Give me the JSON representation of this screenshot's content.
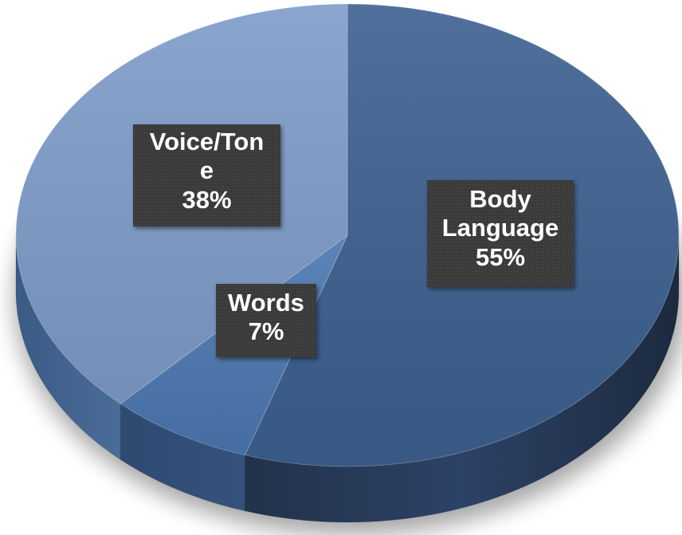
{
  "chart_data": {
    "type": "pie",
    "style": "3d",
    "slices": [
      {
        "label": "Body Language",
        "value": 55,
        "color": "#3d6090"
      },
      {
        "label": "Words",
        "value": 7,
        "color": "#4b77b0"
      },
      {
        "label": "Voice/Tone",
        "value": 38,
        "color": "#7d9cc9"
      }
    ]
  },
  "labels": {
    "body": {
      "line1": "Body",
      "line2": "Language",
      "pct": "55%"
    },
    "words": {
      "line1": "Words",
      "pct": "7%"
    },
    "voice": {
      "line1": "Voice/Ton",
      "line2": "e",
      "pct": "38%"
    }
  }
}
